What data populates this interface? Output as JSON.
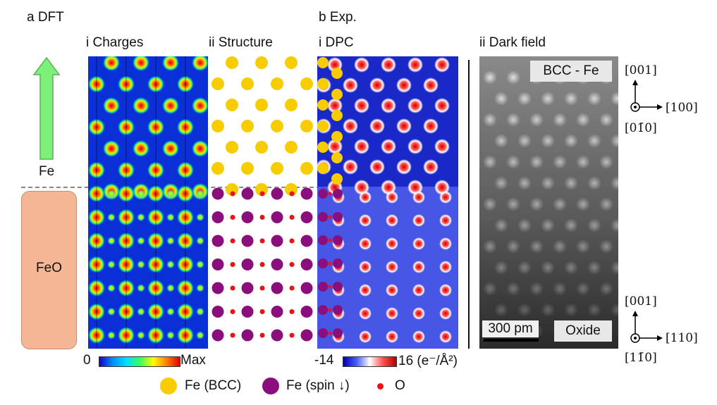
{
  "panel_a": {
    "title": "a DFT",
    "fe_label": "Fe",
    "feo_label": "FeO",
    "charges_title": "i Charges",
    "structure_title": "ii Structure",
    "colorbar_min": "0",
    "colorbar_max": "Max"
  },
  "panel_b": {
    "title": "b Exp.",
    "dpc_title": "i DPC",
    "dark_field_title": "ii Dark field",
    "colorbar_min": "-14",
    "colorbar_max": "16 (e⁻/Å²)",
    "top_tag": "BCC - Fe",
    "bottom_tag": "Oxide",
    "scale_bar": "300 pm"
  },
  "legend": {
    "fe_bcc": "Fe (BCC)",
    "fe_spin": "Fe (spin ↓)",
    "oxygen": "O"
  },
  "orientation_top": {
    "up": "[001]",
    "right": "[100]",
    "out": "[01̄0]"
  },
  "orientation_bottom": {
    "up": "[001]",
    "right": "[110]",
    "out": "[11̄0]"
  },
  "colors": {
    "fe_bcc": "#f7cd00",
    "fe_spin": "#8a0f7c",
    "oxygen": "#ee1111",
    "arrow_green": "#7df07a",
    "feo_box": "#f4b695"
  }
}
